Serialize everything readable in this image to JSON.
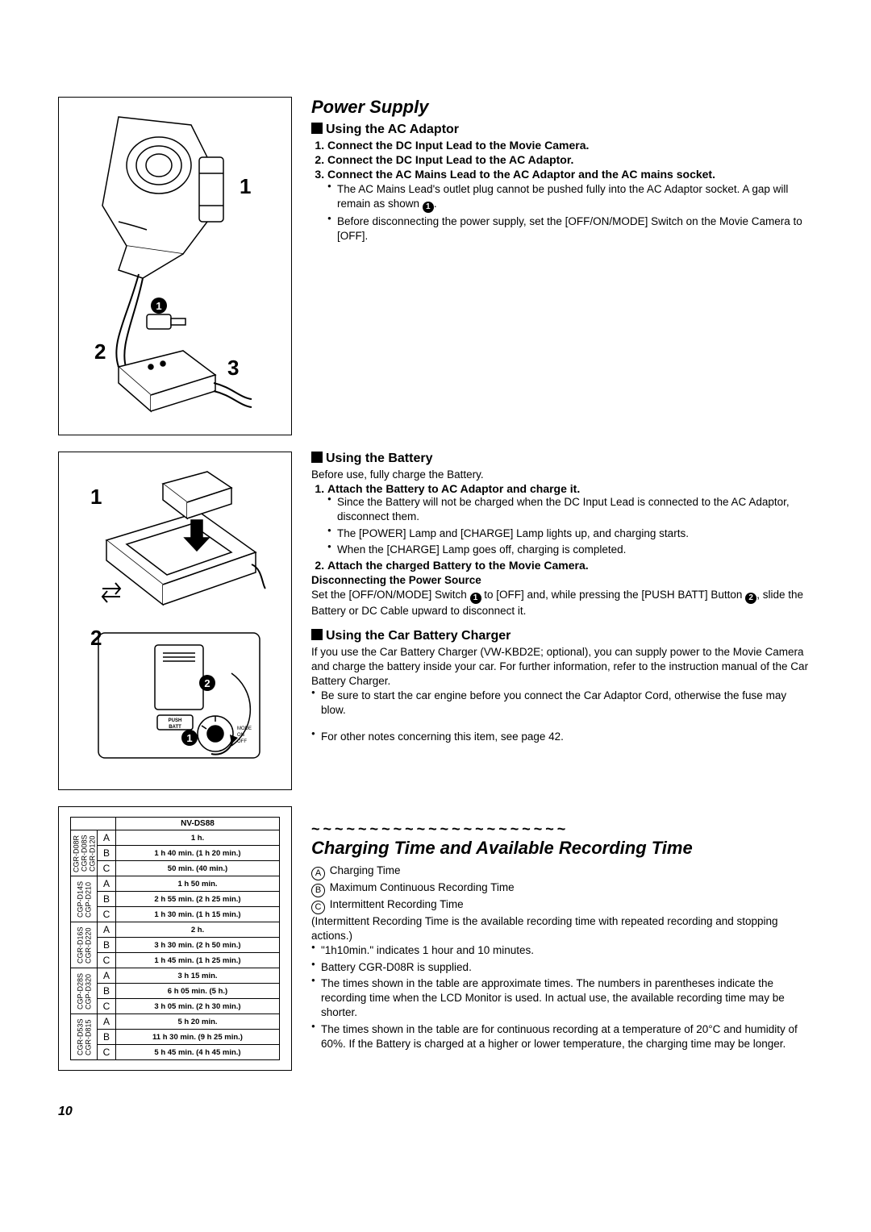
{
  "section1": {
    "title": "Power Supply",
    "sub1": {
      "title": "Using the AC Adaptor",
      "steps": [
        "Connect the DC Input Lead to the Movie Camera.",
        "Connect the DC Input Lead to the AC Adaptor.",
        "Connect the AC Mains Lead to the AC Adaptor and the AC mains socket."
      ],
      "notes": [
        "The AC Mains Lead's outlet plug cannot be pushed fully into the AC Adaptor socket. A gap will remain as shown ",
        "Before disconnecting the power supply, set the [OFF/ON/MODE] Switch on the Movie Camera to [OFF]."
      ],
      "notes_badge1": "1"
    },
    "sub2": {
      "title": "Using the Battery",
      "pretext": "Before use, fully charge the Battery.",
      "step1": "Attach the Battery to AC Adaptor and charge it.",
      "step1_notes": [
        "Since the Battery will not be charged when the DC Input Lead is connected to the AC Adaptor, disconnect them.",
        "The [POWER] Lamp and [CHARGE] Lamp lights up, and charging starts.",
        "When the [CHARGE] Lamp goes off, charging is completed."
      ],
      "step2": "Attach the charged Battery to the Movie Camera.",
      "disc_head": "Disconnecting the Power Source",
      "disc_text_a": "Set the [OFF/ON/MODE] Switch ",
      "disc_text_b": " to [OFF] and, while pressing the [PUSH BATT] Button ",
      "disc_text_c": ", slide the Battery or DC Cable upward to disconnect it.",
      "badge1": "1",
      "badge2": "2"
    },
    "sub3": {
      "title": "Using the Car Battery Charger",
      "text": "If you use the Car Battery Charger (VW-KBD2E; optional), you can supply power to the Movie Camera and charge the battery inside your car. For further information, refer to the instruction manual of the Car Battery Charger.",
      "notes": [
        "Be sure to start the car engine before you connect the Car Adaptor Cord, otherwise the fuse may blow."
      ],
      "other_note": "For other notes concerning this item, see page 42."
    }
  },
  "section2": {
    "tilde": "~~~~~~~~~~~~~~~~~~~~~~",
    "title": "Charging Time and Available Recording Time",
    "legend": {
      "A": "Charging Time",
      "B": "Maximum Continuous Recording Time",
      "C": "Intermittent Recording Time"
    },
    "para1": "(Intermittent Recording Time is the available recording time with repeated recording and stopping actions.)",
    "bullets": [
      "\"1h10min.\" indicates 1 hour and 10 minutes.",
      "Battery CGR-D08R is supplied.",
      "The times shown in the table are approximate times. The numbers in parentheses indicate the recording time when the LCD Monitor is used. In actual use, the available recording time may be shorter.",
      "The times shown in the table are for continuous recording at a temperature of 20°C and humidity of 60%. If the Battery is charged at a higher or lower temperature, the charging time may be longer."
    ]
  },
  "table": {
    "header": "NV-DS88",
    "groups": [
      {
        "batt": "CGR-D08R\nCGR-D08S\nCGR-D120",
        "rows": [
          [
            "A",
            "1 h."
          ],
          [
            "B",
            "1 h 40 min. (1 h 20 min.)"
          ],
          [
            "C",
            "50 min. (40 min.)"
          ]
        ]
      },
      {
        "batt": "CGP-D14S\nCGP-D210",
        "rows": [
          [
            "A",
            "1 h 50 min."
          ],
          [
            "B",
            "2 h 55 min. (2 h 25 min.)"
          ],
          [
            "C",
            "1 h 30 min. (1 h 15 min.)"
          ]
        ]
      },
      {
        "batt": "CGR-D16S\nCGR-D220",
        "rows": [
          [
            "A",
            "2 h."
          ],
          [
            "B",
            "3 h 30 min. (2 h 50 min.)"
          ],
          [
            "C",
            "1 h 45 min. (1 h 25 min.)"
          ]
        ]
      },
      {
        "batt": "CGP-D28S\nCGP-D320",
        "rows": [
          [
            "A",
            "3 h 15 min."
          ],
          [
            "B",
            "6 h 05 min. (5 h.)"
          ],
          [
            "C",
            "3 h 05 min. (2 h 30 min.)"
          ]
        ]
      },
      {
        "batt": "CGR-D53S\nCGR-D815",
        "rows": [
          [
            "A",
            "5 h 20 min."
          ],
          [
            "B",
            "11 h 30 min. (9 h 25 min.)"
          ],
          [
            "C",
            "5 h 45 min. (4 h 45 min.)"
          ]
        ]
      }
    ]
  },
  "figures": {
    "fig1": {
      "n1": "1",
      "n2": "2",
      "n3": "3",
      "badge": "1"
    },
    "fig2": {
      "n1": "1",
      "n2": "2",
      "badge1": "1",
      "badge2": "2",
      "batt": "BATT",
      "push": "PUSH",
      "mode": "MODE",
      "on": "ON",
      "off": "OFF"
    }
  },
  "page_number": "10",
  "colors": {
    "text": "#000000",
    "bg": "#ffffff",
    "border": "#000000"
  }
}
